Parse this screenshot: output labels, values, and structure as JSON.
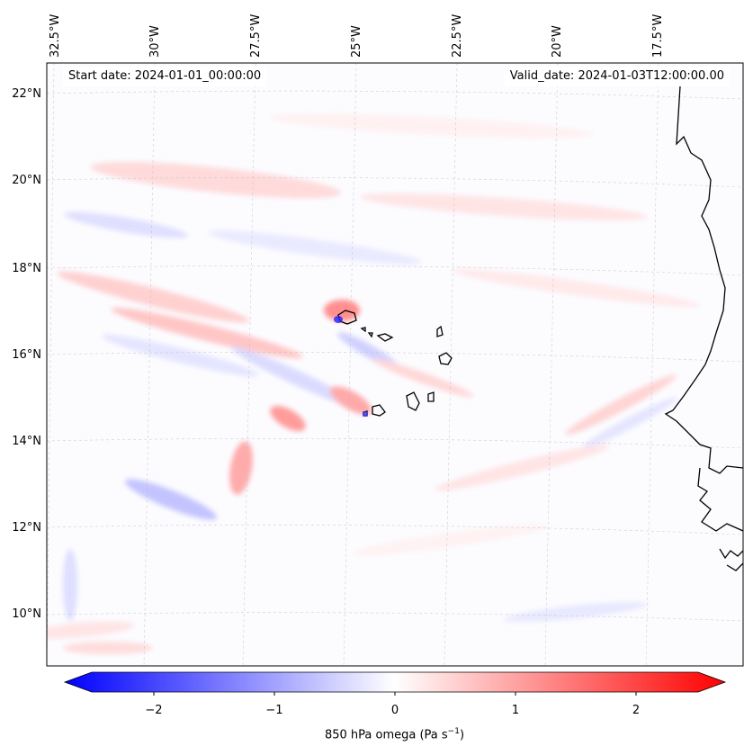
{
  "header": {
    "start_date": "Start date: 2024-01-01_00:00:00",
    "valid_date": "Valid_date: 2024-01-03T12:00:00.00"
  },
  "axes": {
    "lon_labels": [
      "32.5°W",
      "30°W",
      "27.5°W",
      "25°W",
      "22.5°W",
      "20°W",
      "17.5°W"
    ],
    "lat_labels": [
      "22°N",
      "20°N",
      "18°N",
      "16°N",
      "14°N",
      "12°N",
      "10°N"
    ]
  },
  "colorbar": {
    "ticks": [
      "−2",
      "−1",
      "0",
      "1",
      "2"
    ],
    "label_main": "850 hPa omega (Pa s",
    "label_sup": "−1",
    "label_close": ")",
    "range": [
      -2.5,
      2.5
    ],
    "colormap": "bwr",
    "extend": "both"
  },
  "colors": {
    "negative": "#0000ff",
    "neutral": "#ffffff",
    "positive": "#ff0000",
    "coastline": "#000000"
  }
}
